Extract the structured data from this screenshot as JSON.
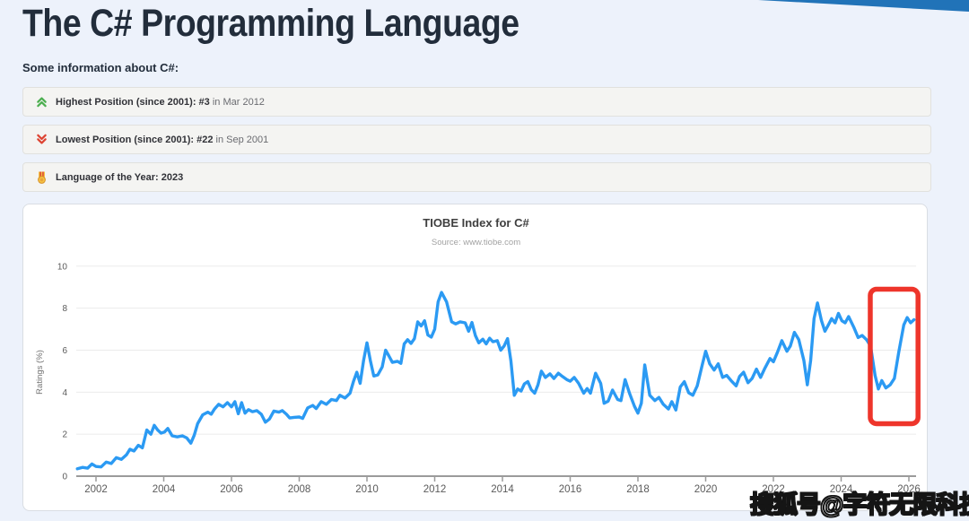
{
  "page": {
    "title": "The C# Programming Language",
    "subtitle": "Some information about C#:",
    "watermark": "搜狐号@字符无限科技",
    "accent_color": "#2173b8",
    "background_color": "#edf2fb"
  },
  "info_boxes": [
    {
      "icon": "double-chevron-up-icon",
      "icon_color": "#4caf50",
      "bold": "Highest Position (since 2001): #3",
      "rest": " in Mar 2012"
    },
    {
      "icon": "double-chevron-down-icon",
      "icon_color": "#dd4433",
      "bold": "Lowest Position (since 2001): #22",
      "rest": " in Sep 2001"
    },
    {
      "icon": "medal-icon",
      "icon_color": "#f5c242",
      "bold": "Language of the Year: 2023",
      "rest": ""
    }
  ],
  "chart_data": {
    "type": "line",
    "title": "TIOBE Index for C#",
    "subtitle": "Source: www.tiobe.com",
    "xlabel": "",
    "ylabel": "Ratings (%)",
    "ylim": [
      0,
      10
    ],
    "yticks": [
      0,
      2,
      4,
      6,
      8,
      10
    ],
    "xticks": [
      2002,
      2004,
      2006,
      2008,
      2010,
      2012,
      2014,
      2016,
      2018,
      2020,
      2022,
      2024,
      2026
    ],
    "xlim": [
      2001.4,
      2026.55
    ],
    "grid": true,
    "legend_position": "none",
    "line_color": "#2b9af3",
    "highlight_box": {
      "x_range": [
        2024.86,
        2026.27
      ],
      "y_range": [
        2.5,
        8.9
      ],
      "color": "#ee352b"
    },
    "series": [
      {
        "name": "C#",
        "points": [
          [
            2001.45,
            0.35
          ],
          [
            2001.6,
            0.42
          ],
          [
            2001.75,
            0.38
          ],
          [
            2001.88,
            0.58
          ],
          [
            2002.0,
            0.46
          ],
          [
            2002.15,
            0.44
          ],
          [
            2002.3,
            0.67
          ],
          [
            2002.45,
            0.6
          ],
          [
            2002.6,
            0.88
          ],
          [
            2002.75,
            0.8
          ],
          [
            2002.9,
            1.02
          ],
          [
            2003.0,
            1.28
          ],
          [
            2003.12,
            1.2
          ],
          [
            2003.25,
            1.47
          ],
          [
            2003.37,
            1.35
          ],
          [
            2003.5,
            2.2
          ],
          [
            2003.62,
            2.0
          ],
          [
            2003.72,
            2.42
          ],
          [
            2003.82,
            2.2
          ],
          [
            2003.92,
            2.05
          ],
          [
            2004.02,
            2.1
          ],
          [
            2004.12,
            2.27
          ],
          [
            2004.25,
            1.92
          ],
          [
            2004.4,
            1.87
          ],
          [
            2004.55,
            1.92
          ],
          [
            2004.68,
            1.82
          ],
          [
            2004.8,
            1.57
          ],
          [
            2004.9,
            1.95
          ],
          [
            2005.0,
            2.5
          ],
          [
            2005.15,
            2.92
          ],
          [
            2005.3,
            3.05
          ],
          [
            2005.4,
            2.95
          ],
          [
            2005.5,
            3.2
          ],
          [
            2005.62,
            3.42
          ],
          [
            2005.75,
            3.3
          ],
          [
            2005.88,
            3.5
          ],
          [
            2006.0,
            3.3
          ],
          [
            2006.1,
            3.55
          ],
          [
            2006.2,
            2.97
          ],
          [
            2006.3,
            3.5
          ],
          [
            2006.4,
            3.0
          ],
          [
            2006.5,
            3.17
          ],
          [
            2006.62,
            3.07
          ],
          [
            2006.75,
            3.12
          ],
          [
            2006.88,
            2.95
          ],
          [
            2007.0,
            2.57
          ],
          [
            2007.12,
            2.72
          ],
          [
            2007.25,
            3.1
          ],
          [
            2007.4,
            3.05
          ],
          [
            2007.5,
            3.12
          ],
          [
            2007.62,
            2.95
          ],
          [
            2007.72,
            2.77
          ],
          [
            2007.85,
            2.8
          ],
          [
            2008.0,
            2.82
          ],
          [
            2008.1,
            2.75
          ],
          [
            2008.25,
            3.25
          ],
          [
            2008.4,
            3.37
          ],
          [
            2008.5,
            3.22
          ],
          [
            2008.65,
            3.55
          ],
          [
            2008.8,
            3.42
          ],
          [
            2008.95,
            3.65
          ],
          [
            2009.1,
            3.6
          ],
          [
            2009.2,
            3.85
          ],
          [
            2009.35,
            3.72
          ],
          [
            2009.5,
            3.95
          ],
          [
            2009.6,
            4.5
          ],
          [
            2009.7,
            4.95
          ],
          [
            2009.8,
            4.42
          ],
          [
            2009.9,
            5.5
          ],
          [
            2010.0,
            6.35
          ],
          [
            2010.1,
            5.5
          ],
          [
            2010.2,
            4.77
          ],
          [
            2010.32,
            4.82
          ],
          [
            2010.45,
            5.2
          ],
          [
            2010.55,
            6.0
          ],
          [
            2010.65,
            5.72
          ],
          [
            2010.75,
            5.42
          ],
          [
            2010.9,
            5.47
          ],
          [
            2011.0,
            5.37
          ],
          [
            2011.1,
            6.3
          ],
          [
            2011.2,
            6.5
          ],
          [
            2011.3,
            6.32
          ],
          [
            2011.4,
            6.55
          ],
          [
            2011.5,
            7.35
          ],
          [
            2011.6,
            7.15
          ],
          [
            2011.7,
            7.4
          ],
          [
            2011.8,
            6.72
          ],
          [
            2011.9,
            6.62
          ],
          [
            2012.0,
            7.0
          ],
          [
            2012.1,
            8.3
          ],
          [
            2012.2,
            8.75
          ],
          [
            2012.35,
            8.3
          ],
          [
            2012.5,
            7.35
          ],
          [
            2012.62,
            7.25
          ],
          [
            2012.75,
            7.35
          ],
          [
            2012.9,
            7.3
          ],
          [
            2013.0,
            6.9
          ],
          [
            2013.1,
            7.32
          ],
          [
            2013.2,
            6.7
          ],
          [
            2013.3,
            6.35
          ],
          [
            2013.42,
            6.52
          ],
          [
            2013.52,
            6.3
          ],
          [
            2013.62,
            6.57
          ],
          [
            2013.72,
            6.4
          ],
          [
            2013.85,
            6.45
          ],
          [
            2013.95,
            6.0
          ],
          [
            2014.05,
            6.2
          ],
          [
            2014.15,
            6.55
          ],
          [
            2014.25,
            5.5
          ],
          [
            2014.35,
            3.85
          ],
          [
            2014.45,
            4.15
          ],
          [
            2014.55,
            4.05
          ],
          [
            2014.65,
            4.4
          ],
          [
            2014.75,
            4.5
          ],
          [
            2014.85,
            4.12
          ],
          [
            2014.95,
            3.95
          ],
          [
            2015.05,
            4.35
          ],
          [
            2015.15,
            5.0
          ],
          [
            2015.27,
            4.7
          ],
          [
            2015.4,
            4.87
          ],
          [
            2015.52,
            4.65
          ],
          [
            2015.65,
            4.9
          ],
          [
            2015.77,
            4.75
          ],
          [
            2015.9,
            4.6
          ],
          [
            2016.0,
            4.52
          ],
          [
            2016.12,
            4.7
          ],
          [
            2016.25,
            4.42
          ],
          [
            2016.4,
            3.95
          ],
          [
            2016.5,
            4.17
          ],
          [
            2016.6,
            3.95
          ],
          [
            2016.75,
            4.9
          ],
          [
            2016.9,
            4.42
          ],
          [
            2017.0,
            3.47
          ],
          [
            2017.12,
            3.57
          ],
          [
            2017.25,
            4.1
          ],
          [
            2017.4,
            3.65
          ],
          [
            2017.5,
            3.6
          ],
          [
            2017.62,
            4.6
          ],
          [
            2017.75,
            3.95
          ],
          [
            2017.9,
            3.32
          ],
          [
            2018.0,
            3.0
          ],
          [
            2018.1,
            3.47
          ],
          [
            2018.2,
            5.3
          ],
          [
            2018.35,
            3.85
          ],
          [
            2018.5,
            3.6
          ],
          [
            2018.62,
            3.75
          ],
          [
            2018.75,
            3.42
          ],
          [
            2018.9,
            3.2
          ],
          [
            2019.0,
            3.55
          ],
          [
            2019.12,
            3.15
          ],
          [
            2019.25,
            4.25
          ],
          [
            2019.37,
            4.5
          ],
          [
            2019.5,
            3.97
          ],
          [
            2019.62,
            3.85
          ],
          [
            2019.75,
            4.3
          ],
          [
            2019.9,
            5.3
          ],
          [
            2020.0,
            5.95
          ],
          [
            2020.12,
            5.35
          ],
          [
            2020.25,
            5.05
          ],
          [
            2020.37,
            5.35
          ],
          [
            2020.5,
            4.7
          ],
          [
            2020.62,
            4.8
          ],
          [
            2020.75,
            4.55
          ],
          [
            2020.9,
            4.3
          ],
          [
            2021.0,
            4.75
          ],
          [
            2021.12,
            4.95
          ],
          [
            2021.25,
            4.45
          ],
          [
            2021.37,
            4.65
          ],
          [
            2021.5,
            5.1
          ],
          [
            2021.62,
            4.7
          ],
          [
            2021.75,
            5.15
          ],
          [
            2021.9,
            5.6
          ],
          [
            2022.0,
            5.45
          ],
          [
            2022.12,
            5.9
          ],
          [
            2022.25,
            6.45
          ],
          [
            2022.4,
            5.95
          ],
          [
            2022.5,
            6.2
          ],
          [
            2022.62,
            6.85
          ],
          [
            2022.75,
            6.5
          ],
          [
            2022.9,
            5.5
          ],
          [
            2023.0,
            4.35
          ],
          [
            2023.1,
            5.5
          ],
          [
            2023.2,
            7.5
          ],
          [
            2023.3,
            8.25
          ],
          [
            2023.42,
            7.4
          ],
          [
            2023.52,
            6.9
          ],
          [
            2023.62,
            7.2
          ],
          [
            2023.72,
            7.5
          ],
          [
            2023.82,
            7.3
          ],
          [
            2023.92,
            7.75
          ],
          [
            2024.02,
            7.4
          ],
          [
            2024.12,
            7.3
          ],
          [
            2024.22,
            7.6
          ],
          [
            2024.37,
            7.1
          ],
          [
            2024.5,
            6.6
          ],
          [
            2024.62,
            6.7
          ],
          [
            2024.75,
            6.5
          ],
          [
            2024.87,
            6.2
          ],
          [
            2025.0,
            4.8
          ],
          [
            2025.1,
            4.15
          ],
          [
            2025.2,
            4.55
          ],
          [
            2025.32,
            4.2
          ],
          [
            2025.45,
            4.35
          ],
          [
            2025.57,
            4.65
          ],
          [
            2025.7,
            5.9
          ],
          [
            2025.85,
            7.2
          ],
          [
            2025.95,
            7.55
          ],
          [
            2026.05,
            7.3
          ],
          [
            2026.15,
            7.45
          ]
        ]
      }
    ]
  }
}
